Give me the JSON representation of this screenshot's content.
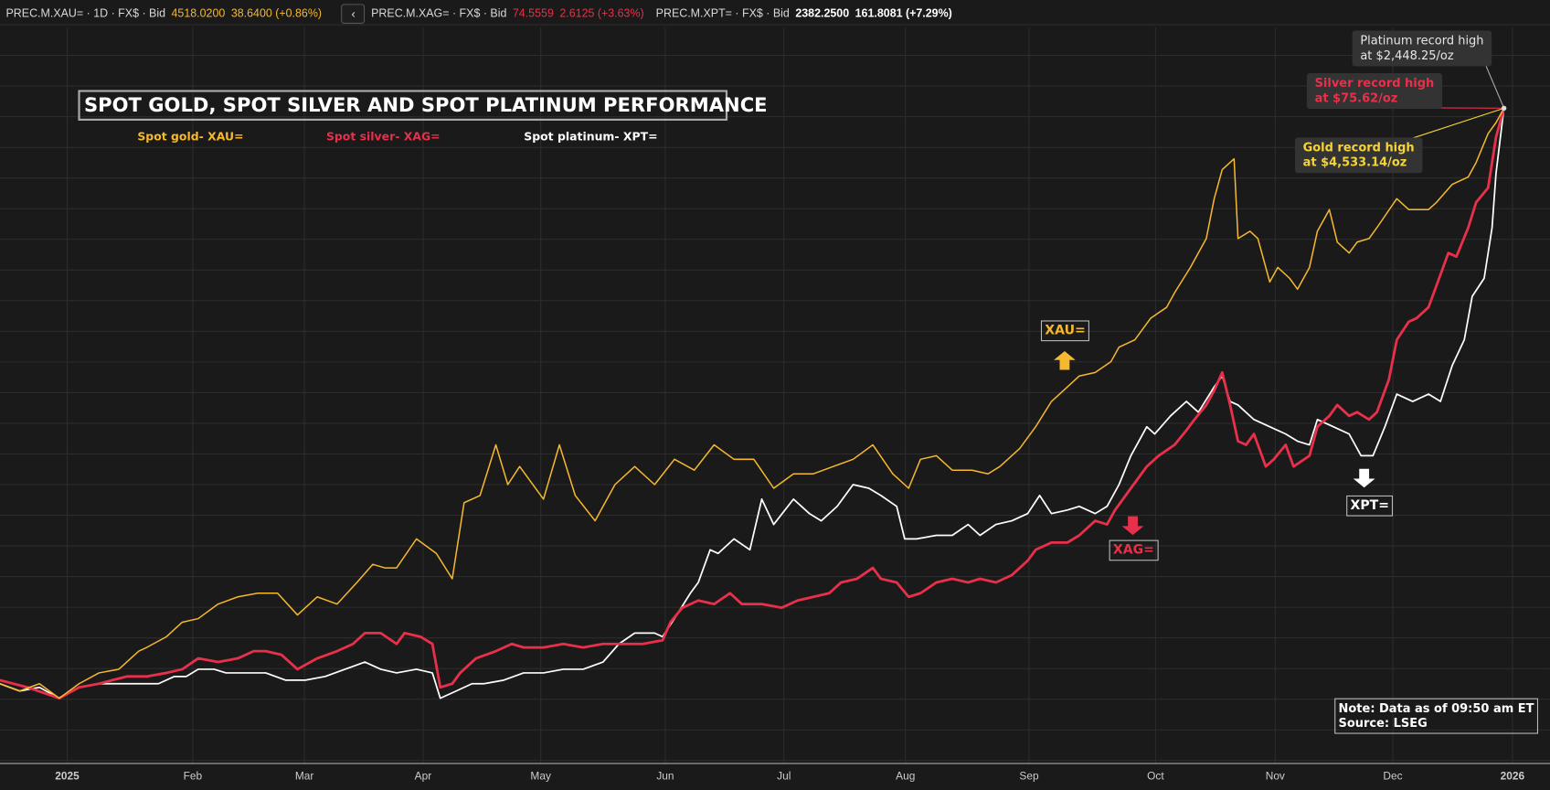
{
  "topbar": {
    "xau": {
      "ric": "PREC.M.XAU= · 1D · FX$ · Bid",
      "price": "4518.0200",
      "change": "38.6400 (+0.86%)"
    },
    "back_label": "‹",
    "xag": {
      "ric": "PREC.M.XAG= · FX$ · Bid",
      "price": "74.5559",
      "change": "2.6125 (+3.63%)"
    },
    "xpt": {
      "ric": "PREC.M.XPT= · FX$ · Bid",
      "price": "2382.2500",
      "change": "161.8081 (+7.29%)"
    }
  },
  "colors": {
    "gold": "#f5b82e",
    "silver": "#e8304a",
    "platinum": "#ffffff",
    "background": "#1a1a1a"
  },
  "chart_data": {
    "type": "line",
    "title": "SPOT GOLD, SPOT SILVER AND SPOT PLATINUM PERFORMANCE",
    "xlabel": "",
    "ylabel": "",
    "x_unit": "days since 2025-01-01",
    "y_unit": "approx. % change (rebased, no axis shown)",
    "x_ticks": [
      "2025",
      "Feb",
      "Mar",
      "Apr",
      "May",
      "Jun",
      "Jul",
      "Aug",
      "Sep",
      "Oct",
      "Nov",
      "Dec",
      "2026"
    ],
    "grid": true,
    "legend": [
      "Spot gold- XAU=",
      "Spot silver- XAG=",
      "Spot platinum- XPT="
    ],
    "legend_position": "top-left",
    "series": [
      {
        "name": "Spot gold- XAU=",
        "tag": "XAU=",
        "color": "#f5b82e",
        "points": [
          [
            -17,
            1
          ],
          [
            -12,
            -1
          ],
          [
            -7,
            1
          ],
          [
            -2,
            -3
          ],
          [
            3,
            1
          ],
          [
            8,
            4
          ],
          [
            13,
            5
          ],
          [
            18,
            10
          ],
          [
            20,
            11
          ],
          [
            25,
            14
          ],
          [
            29,
            18
          ],
          [
            33,
            19
          ],
          [
            38,
            23
          ],
          [
            43,
            25
          ],
          [
            48,
            26
          ],
          [
            53,
            26
          ],
          [
            58,
            20
          ],
          [
            63,
            25
          ],
          [
            68,
            23
          ],
          [
            73,
            29
          ],
          [
            77,
            34
          ],
          [
            80,
            33
          ],
          [
            83,
            33
          ],
          [
            88,
            41
          ],
          [
            93,
            37
          ],
          [
            97,
            30
          ],
          [
            98,
            37
          ],
          [
            100,
            51
          ],
          [
            104,
            53
          ],
          [
            108,
            67
          ],
          [
            111,
            56
          ],
          [
            114,
            61
          ],
          [
            120,
            52
          ],
          [
            124,
            67
          ],
          [
            128,
            53
          ],
          [
            133,
            46
          ],
          [
            138,
            56
          ],
          [
            143,
            61
          ],
          [
            148,
            56
          ],
          [
            153,
            63
          ],
          [
            158,
            60
          ],
          [
            163,
            67
          ],
          [
            168,
            63
          ],
          [
            173,
            63
          ],
          [
            178,
            55
          ],
          [
            183,
            59
          ],
          [
            188,
            59
          ],
          [
            193,
            61
          ],
          [
            198,
            63
          ],
          [
            203,
            67
          ],
          [
            208,
            59
          ],
          [
            212,
            55
          ],
          [
            215,
            63
          ],
          [
            219,
            64
          ],
          [
            223,
            60
          ],
          [
            228,
            60
          ],
          [
            232,
            59
          ],
          [
            235,
            61
          ],
          [
            240,
            66
          ],
          [
            244,
            72
          ],
          [
            248,
            79
          ],
          [
            252,
            83
          ],
          [
            255,
            86
          ],
          [
            259,
            87
          ],
          [
            263,
            90
          ],
          [
            265,
            94
          ],
          [
            269,
            96
          ],
          [
            273,
            102
          ],
          [
            277,
            105
          ],
          [
            279,
            109
          ],
          [
            283,
            116
          ],
          [
            287,
            124
          ],
          [
            289,
            135
          ],
          [
            291,
            143
          ],
          [
            294,
            146
          ],
          [
            295,
            124
          ],
          [
            298,
            126
          ],
          [
            300,
            124
          ],
          [
            303,
            112
          ],
          [
            305,
            116
          ],
          [
            308,
            113
          ],
          [
            310,
            110
          ],
          [
            313,
            116
          ],
          [
            315,
            126
          ],
          [
            318,
            132
          ],
          [
            320,
            123
          ],
          [
            323,
            120
          ],
          [
            325,
            123
          ],
          [
            328,
            124
          ],
          [
            330,
            127
          ],
          [
            335,
            135
          ],
          [
            338,
            132
          ],
          [
            343,
            132
          ],
          [
            345,
            134
          ],
          [
            349,
            139
          ],
          [
            353,
            141
          ],
          [
            355,
            145
          ],
          [
            358,
            153
          ],
          [
            360,
            156
          ],
          [
            362,
            160
          ]
        ]
      },
      {
        "name": "Spot silver- XAG=",
        "tag": "XAG=",
        "color": "#e8304a",
        "points": [
          [
            -17,
            2
          ],
          [
            -10,
            0
          ],
          [
            -2,
            -3
          ],
          [
            3,
            0
          ],
          [
            8,
            1
          ],
          [
            15,
            3
          ],
          [
            20,
            3
          ],
          [
            25,
            4
          ],
          [
            29,
            5
          ],
          [
            33,
            8
          ],
          [
            38,
            7
          ],
          [
            43,
            8
          ],
          [
            47,
            10
          ],
          [
            50,
            10
          ],
          [
            54,
            9
          ],
          [
            58,
            5
          ],
          [
            63,
            8
          ],
          [
            68,
            10
          ],
          [
            72,
            12
          ],
          [
            75,
            15
          ],
          [
            79,
            15
          ],
          [
            83,
            12
          ],
          [
            85,
            15
          ],
          [
            89,
            14
          ],
          [
            92,
            12
          ],
          [
            94,
            0
          ],
          [
            97,
            1
          ],
          [
            99,
            4
          ],
          [
            103,
            8
          ],
          [
            108,
            10
          ],
          [
            112,
            12
          ],
          [
            115,
            11
          ],
          [
            120,
            11
          ],
          [
            125,
            12
          ],
          [
            130,
            11
          ],
          [
            135,
            12
          ],
          [
            140,
            12
          ],
          [
            145,
            12
          ],
          [
            150,
            13
          ],
          [
            152,
            18
          ],
          [
            155,
            22
          ],
          [
            159,
            24
          ],
          [
            163,
            23
          ],
          [
            167,
            26
          ],
          [
            170,
            23
          ],
          [
            175,
            23
          ],
          [
            180,
            22
          ],
          [
            184,
            24
          ],
          [
            188,
            25
          ],
          [
            192,
            26
          ],
          [
            195,
            29
          ],
          [
            199,
            30
          ],
          [
            203,
            33
          ],
          [
            205,
            30
          ],
          [
            209,
            29
          ],
          [
            212,
            25
          ],
          [
            215,
            26
          ],
          [
            219,
            29
          ],
          [
            223,
            30
          ],
          [
            227,
            29
          ],
          [
            230,
            30
          ],
          [
            234,
            29
          ],
          [
            238,
            31
          ],
          [
            242,
            35
          ],
          [
            244,
            38
          ],
          [
            248,
            40
          ],
          [
            252,
            40
          ],
          [
            255,
            42
          ],
          [
            259,
            46
          ],
          [
            262,
            45
          ],
          [
            264,
            49
          ],
          [
            268,
            55
          ],
          [
            272,
            61
          ],
          [
            275,
            64
          ],
          [
            279,
            67
          ],
          [
            282,
            71
          ],
          [
            284,
            74
          ],
          [
            287,
            78
          ],
          [
            289,
            82
          ],
          [
            291,
            87
          ],
          [
            293,
            78
          ],
          [
            295,
            68
          ],
          [
            297,
            67
          ],
          [
            299,
            70
          ],
          [
            302,
            61
          ],
          [
            304,
            63
          ],
          [
            307,
            67
          ],
          [
            309,
            61
          ],
          [
            313,
            64
          ],
          [
            315,
            72
          ],
          [
            318,
            75
          ],
          [
            320,
            78
          ],
          [
            323,
            75
          ],
          [
            325,
            76
          ],
          [
            328,
            74
          ],
          [
            330,
            76
          ],
          [
            333,
            85
          ],
          [
            335,
            96
          ],
          [
            338,
            101
          ],
          [
            340,
            102
          ],
          [
            343,
            105
          ],
          [
            345,
            111
          ],
          [
            348,
            120
          ],
          [
            350,
            119
          ],
          [
            353,
            127
          ],
          [
            355,
            134
          ],
          [
            358,
            138
          ],
          [
            360,
            152
          ],
          [
            362,
            160
          ]
        ]
      },
      {
        "name": "Spot platinum- XPT=",
        "tag": "XPT=",
        "color": "#ffffff",
        "points": [
          [
            -17,
            1
          ],
          [
            -12,
            -1
          ],
          [
            -7,
            0
          ],
          [
            -2,
            -3
          ],
          [
            3,
            0
          ],
          [
            8,
            1
          ],
          [
            13,
            1
          ],
          [
            18,
            1
          ],
          [
            23,
            1
          ],
          [
            27,
            3
          ],
          [
            30,
            3
          ],
          [
            33,
            5
          ],
          [
            37,
            5
          ],
          [
            40,
            4
          ],
          [
            45,
            4
          ],
          [
            50,
            4
          ],
          [
            55,
            2
          ],
          [
            60,
            2
          ],
          [
            65,
            3
          ],
          [
            70,
            5
          ],
          [
            75,
            7
          ],
          [
            79,
            5
          ],
          [
            83,
            4
          ],
          [
            88,
            5
          ],
          [
            92,
            4
          ],
          [
            94,
            -3
          ],
          [
            98,
            -1
          ],
          [
            102,
            1
          ],
          [
            105,
            1
          ],
          [
            110,
            2
          ],
          [
            115,
            4
          ],
          [
            120,
            4
          ],
          [
            125,
            5
          ],
          [
            130,
            5
          ],
          [
            135,
            7
          ],
          [
            139,
            12
          ],
          [
            143,
            15
          ],
          [
            148,
            15
          ],
          [
            150,
            14
          ],
          [
            153,
            19
          ],
          [
            157,
            26
          ],
          [
            159,
            29
          ],
          [
            162,
            38
          ],
          [
            164,
            37
          ],
          [
            168,
            41
          ],
          [
            172,
            38
          ],
          [
            175,
            52
          ],
          [
            178,
            45
          ],
          [
            183,
            52
          ],
          [
            187,
            48
          ],
          [
            190,
            46
          ],
          [
            194,
            50
          ],
          [
            198,
            56
          ],
          [
            202,
            55
          ],
          [
            205,
            53
          ],
          [
            209,
            50
          ],
          [
            211,
            41
          ],
          [
            214,
            41
          ],
          [
            219,
            42
          ],
          [
            223,
            42
          ],
          [
            227,
            45
          ],
          [
            230,
            42
          ],
          [
            234,
            45
          ],
          [
            238,
            46
          ],
          [
            242,
            48
          ],
          [
            245,
            53
          ],
          [
            248,
            48
          ],
          [
            252,
            49
          ],
          [
            255,
            50
          ],
          [
            259,
            48
          ],
          [
            262,
            50
          ],
          [
            265,
            56
          ],
          [
            268,
            64
          ],
          [
            272,
            72
          ],
          [
            274,
            70
          ],
          [
            278,
            75
          ],
          [
            282,
            79
          ],
          [
            285,
            76
          ],
          [
            289,
            83
          ],
          [
            291,
            86
          ],
          [
            293,
            79
          ],
          [
            295,
            78
          ],
          [
            299,
            74
          ],
          [
            303,
            72
          ],
          [
            307,
            70
          ],
          [
            310,
            68
          ],
          [
            313,
            67
          ],
          [
            315,
            74
          ],
          [
            319,
            72
          ],
          [
            323,
            70
          ],
          [
            326,
            64
          ],
          [
            329,
            64
          ],
          [
            332,
            72
          ],
          [
            335,
            81
          ],
          [
            339,
            79
          ],
          [
            343,
            81
          ],
          [
            346,
            79
          ],
          [
            349,
            89
          ],
          [
            352,
            96
          ],
          [
            354,
            108
          ],
          [
            357,
            113
          ],
          [
            359,
            127
          ],
          [
            360,
            142
          ],
          [
            362,
            160
          ]
        ]
      }
    ],
    "annotations": {
      "platinum": [
        "Platinum record high",
        "at $2,448.25/oz"
      ],
      "silver": [
        "Silver record high",
        "at $75.62/oz"
      ],
      "gold": [
        "Gold record high",
        "at $4,533.14/oz"
      ],
      "direction": {
        "XAU=": "up",
        "XAG=": "down",
        "XPT=": "down"
      }
    },
    "note": [
      "Note: Data as of 09:50 am ET",
      "Source: LSEG"
    ]
  }
}
